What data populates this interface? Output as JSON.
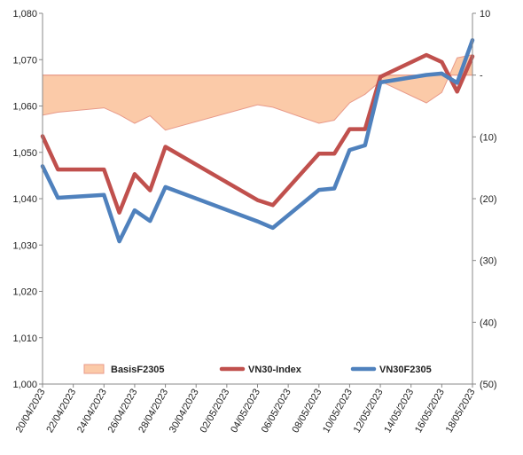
{
  "chart_data": {
    "type": "line",
    "title": "",
    "xlabel": "",
    "ylabel": "",
    "y2label": "",
    "ylim": [
      1000,
      1080
    ],
    "y2lim": [
      -50,
      10
    ],
    "grid": false,
    "legend_position": "bottom",
    "x_tick_labels": [
      "20/04/2023",
      "22/04/2023",
      "24/04/2023",
      "26/04/2023",
      "28/04/2023",
      "30/04/2023",
      "02/05/2023",
      "04/05/2023",
      "06/05/2023",
      "08/05/2023",
      "10/05/2023",
      "12/05/2023",
      "14/05/2023",
      "16/05/2023",
      "18/05/2023"
    ],
    "y_tick_labels": [
      "1,000",
      "1,010",
      "1,020",
      "1,030",
      "1,040",
      "1,050",
      "1,060",
      "1,070",
      "1,080"
    ],
    "y2_tick_labels": [
      "(50)",
      "(40)",
      "(30)",
      "(20)",
      "(10)",
      "-",
      "10"
    ],
    "series": [
      {
        "name": "BasisF2305",
        "type": "area",
        "axis": "right",
        "color": "#fbcaa8",
        "edge_color": "#e89a8a",
        "x": [
          "20/04/2023",
          "21/04/2023",
          "24/04/2023",
          "25/04/2023",
          "26/04/2023",
          "27/04/2023",
          "28/04/2023",
          "04/05/2023",
          "05/05/2023",
          "08/05/2023",
          "09/05/2023",
          "10/05/2023",
          "11/05/2023",
          "12/05/2023",
          "15/05/2023",
          "16/05/2023",
          "17/05/2023",
          "18/05/2023"
        ],
        "values": [
          -6.5,
          -6.0,
          -5.3,
          -6.4,
          -7.8,
          -6.6,
          -8.9,
          -4.8,
          -5.2,
          -7.8,
          -7.3,
          -4.5,
          -3.1,
          -1.0,
          -4.5,
          -2.8,
          2.8,
          3.3
        ]
      },
      {
        "name": "VN30-Index",
        "type": "line",
        "axis": "left",
        "color": "#c0504d",
        "x": [
          "20/04/2023",
          "21/04/2023",
          "24/04/2023",
          "25/04/2023",
          "26/04/2023",
          "27/04/2023",
          "28/04/2023",
          "04/05/2023",
          "05/05/2023",
          "08/05/2023",
          "09/05/2023",
          "10/05/2023",
          "11/05/2023",
          "12/05/2023",
          "15/05/2023",
          "16/05/2023",
          "17/05/2023",
          "18/05/2023"
        ],
        "values": [
          1053.5,
          1046.3,
          1046.3,
          1037.0,
          1045.3,
          1041.8,
          1051.2,
          1039.7,
          1038.6,
          1049.7,
          1049.7,
          1055.0,
          1055.0,
          1066.3,
          1071.0,
          1069.5,
          1063.1,
          1070.7
        ]
      },
      {
        "name": "VN30F2305",
        "type": "line",
        "axis": "left",
        "color": "#4f81bd",
        "x": [
          "20/04/2023",
          "21/04/2023",
          "24/04/2023",
          "25/04/2023",
          "26/04/2023",
          "27/04/2023",
          "28/04/2023",
          "04/05/2023",
          "05/05/2023",
          "08/05/2023",
          "09/05/2023",
          "10/05/2023",
          "11/05/2023",
          "12/05/2023",
          "15/05/2023",
          "16/05/2023",
          "17/05/2023",
          "18/05/2023"
        ],
        "values": [
          1047.0,
          1040.2,
          1040.8,
          1030.8,
          1037.5,
          1035.2,
          1042.5,
          1035.1,
          1033.7,
          1041.9,
          1042.2,
          1050.5,
          1051.5,
          1065.1,
          1066.7,
          1067.0,
          1065.0,
          1074.2
        ]
      }
    ]
  }
}
